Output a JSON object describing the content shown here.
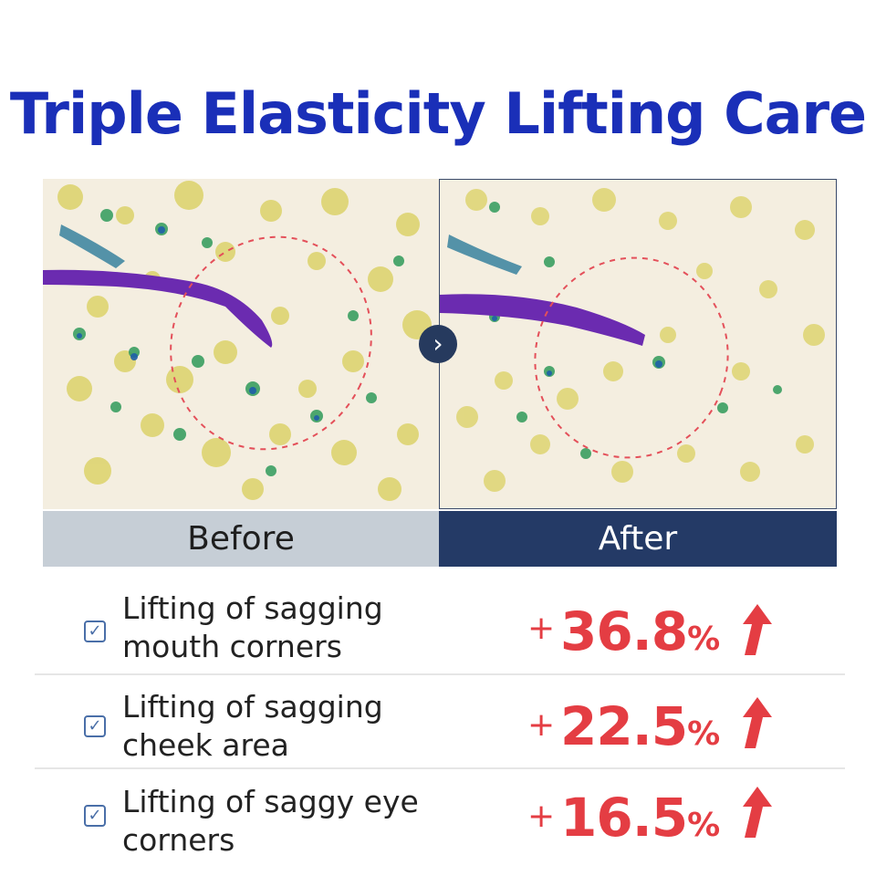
{
  "title": "Triple Elasticity Lifting Care",
  "comparison": {
    "before_label": "Before",
    "after_label": "After",
    "next_icon": "chevron-right-icon"
  },
  "results": [
    {
      "label_line1": "Lifting of sagging",
      "label_line2": "mouth corners",
      "plus": "+",
      "value": "36.8",
      "unit": "%",
      "icon": "up-arrow-icon"
    },
    {
      "label_line1": "Lifting of sagging",
      "label_line2": "cheek area",
      "plus": "+",
      "value": "22.5",
      "unit": "%",
      "icon": "up-arrow-icon"
    },
    {
      "label_line1": "Lifting of saggy eye",
      "label_line2": "corners",
      "plus": "+",
      "value": "16.5",
      "unit": "%",
      "icon": "up-arrow-icon"
    }
  ],
  "colors": {
    "title": "#1a2fb8",
    "after_bar": "#243a66",
    "before_bar": "#c6ced6",
    "accent_red": "#e43d43"
  }
}
